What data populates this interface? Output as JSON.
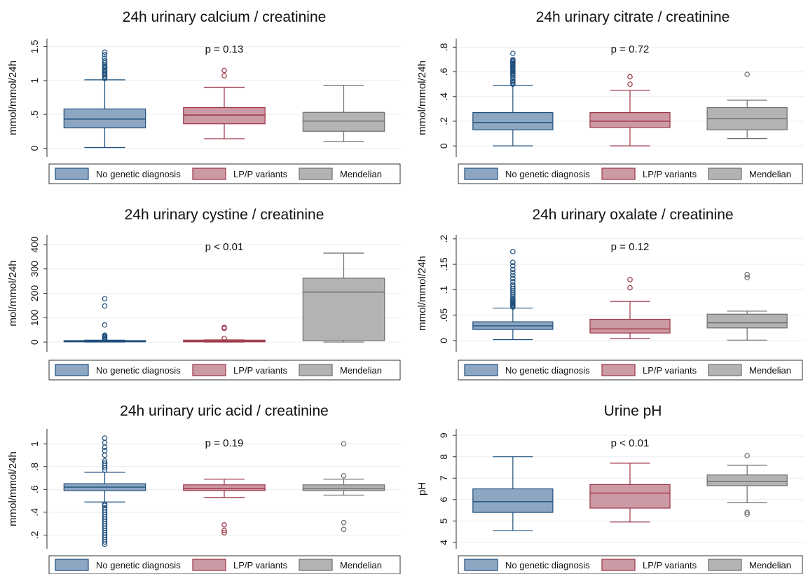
{
  "legend": [
    {
      "label": "No genetic diagnosis",
      "fill": "#8da6c2",
      "stroke": "#1e4f7c"
    },
    {
      "label": "LP/P variants",
      "fill": "#cc9aa4",
      "stroke": "#9c3344"
    },
    {
      "label": "Mendelian",
      "fill": "#b3b3b3",
      "stroke": "#6e6e6e"
    }
  ],
  "chart_data": [
    {
      "type": "box",
      "title": "24h urinary calcium / creatinine",
      "ylabel": "mmol/mmol/24h",
      "pvalue": "p = 0.13",
      "ylim": [
        -0.13,
        1.62
      ],
      "yticks": [
        0,
        0.5,
        1,
        1.5
      ],
      "yticklabels": [
        "0",
        ".5",
        "1",
        "1.5"
      ],
      "groups": [
        {
          "name": "No genetic diagnosis",
          "whisker_low": 0.01,
          "q1": 0.3,
          "median": 0.43,
          "q3": 0.58,
          "whisker_high": 1.01,
          "outliers": [
            1.03,
            1.05,
            1.07,
            1.09,
            1.11,
            1.13,
            1.15,
            1.17,
            1.19,
            1.21,
            1.23,
            1.26,
            1.29,
            1.33,
            1.38,
            1.42
          ]
        },
        {
          "name": "LP/P variants",
          "whisker_low": 0.14,
          "q1": 0.36,
          "median": 0.49,
          "q3": 0.6,
          "whisker_high": 0.9,
          "outliers": [
            1.07,
            1.15
          ]
        },
        {
          "name": "Mendelian",
          "whisker_low": 0.1,
          "q1": 0.25,
          "median": 0.4,
          "q3": 0.53,
          "whisker_high": 0.93,
          "outliers": []
        }
      ]
    },
    {
      "type": "box",
      "title": "24h urinary citrate / creatinine",
      "ylabel": "mmol/mmol/24h",
      "pvalue": "p = 0.72",
      "ylim": [
        -0.09,
        0.87
      ],
      "yticks": [
        0,
        0.2,
        0.4,
        0.6,
        0.8
      ],
      "yticklabels": [
        "0",
        ".2",
        ".4",
        ".6",
        ".8"
      ],
      "groups": [
        {
          "name": "No genetic diagnosis",
          "whisker_low": 0.0,
          "q1": 0.13,
          "median": 0.19,
          "q3": 0.27,
          "whisker_high": 0.49,
          "outliers": [
            0.5,
            0.51,
            0.52,
            0.53,
            0.55,
            0.57,
            0.58,
            0.59,
            0.6,
            0.61,
            0.62,
            0.63,
            0.64,
            0.65,
            0.66,
            0.67,
            0.68,
            0.69,
            0.7,
            0.75
          ]
        },
        {
          "name": "LP/P variants",
          "whisker_low": 0.0,
          "q1": 0.15,
          "median": 0.2,
          "q3": 0.27,
          "whisker_high": 0.45,
          "outliers": [
            0.5,
            0.56
          ]
        },
        {
          "name": "Mendelian",
          "whisker_low": 0.06,
          "q1": 0.13,
          "median": 0.22,
          "q3": 0.31,
          "whisker_high": 0.37,
          "outliers": [
            0.58
          ]
        }
      ]
    },
    {
      "type": "box",
      "title": "24h urinary cystine / creatinine",
      "ylabel": "mol/mmol/24h",
      "pvalue": "p < 0.01",
      "ylim": [
        -40,
        440
      ],
      "yticks": [
        0,
        100,
        200,
        300,
        400
      ],
      "yticklabels": [
        "0",
        "100",
        "200",
        "300",
        "400"
      ],
      "groups": [
        {
          "name": "No genetic diagnosis",
          "whisker_low": 0,
          "q1": 1,
          "median": 3,
          "q3": 6,
          "whisker_high": 8,
          "outliers": [
            12,
            16,
            20,
            24,
            28,
            70,
            148,
            178
          ]
        },
        {
          "name": "LP/P variants",
          "whisker_low": 0,
          "q1": 1,
          "median": 3,
          "q3": 8,
          "whisker_high": 9,
          "outliers": [
            15,
            56,
            60
          ]
        },
        {
          "name": "Mendelian",
          "whisker_low": 0,
          "q1": 6,
          "median": 205,
          "q3": 262,
          "whisker_high": 365,
          "outliers": []
        }
      ]
    },
    {
      "type": "box",
      "title": "24h urinary oxalate / creatinine",
      "ylabel": "mmol/mmol/24h",
      "pvalue": "p = 0.12",
      "ylim": [
        -0.022,
        0.208
      ],
      "yticks": [
        0,
        0.05,
        0.1,
        0.15,
        0.2
      ],
      "yticklabels": [
        "0",
        ".05",
        ".1",
        ".15",
        ".2"
      ],
      "groups": [
        {
          "name": "No genetic diagnosis",
          "whisker_low": 0.002,
          "q1": 0.022,
          "median": 0.029,
          "q3": 0.037,
          "whisker_high": 0.064,
          "outliers": [
            0.066,
            0.068,
            0.07,
            0.072,
            0.074,
            0.076,
            0.078,
            0.08,
            0.083,
            0.086,
            0.09,
            0.094,
            0.098,
            0.102,
            0.106,
            0.11,
            0.116,
            0.122,
            0.128,
            0.134,
            0.14,
            0.147,
            0.154,
            0.175
          ]
        },
        {
          "name": "LP/P variants",
          "whisker_low": 0.004,
          "q1": 0.015,
          "median": 0.023,
          "q3": 0.042,
          "whisker_high": 0.077,
          "outliers": [
            0.104,
            0.12
          ]
        },
        {
          "name": "Mendelian",
          "whisker_low": 0.001,
          "q1": 0.025,
          "median": 0.035,
          "q3": 0.052,
          "whisker_high": 0.058,
          "outliers": [
            0.124,
            0.13
          ]
        }
      ]
    },
    {
      "type": "box",
      "title": "24h urinary uric acid / creatinine",
      "ylabel": "mmol/mmol/24h",
      "pvalue": "p = 0.19",
      "ylim": [
        0.08,
        1.13
      ],
      "yticks": [
        0.2,
        0.4,
        0.6,
        0.8,
        1
      ],
      "yticklabels": [
        ".2",
        ".4",
        ".6",
        ".8",
        "1"
      ],
      "groups": [
        {
          "name": "No genetic diagnosis",
          "whisker_low": 0.49,
          "q1": 0.59,
          "median": 0.62,
          "q3": 0.65,
          "whisker_high": 0.75,
          "outliers": [
            0.12,
            0.14,
            0.16,
            0.18,
            0.2,
            0.22,
            0.24,
            0.26,
            0.28,
            0.3,
            0.32,
            0.34,
            0.36,
            0.38,
            0.4,
            0.42,
            0.44,
            0.46,
            0.47,
            0.77,
            0.79,
            0.81,
            0.83,
            0.85,
            0.9,
            0.94,
            0.97,
            1.01,
            1.05
          ]
        },
        {
          "name": "LP/P variants",
          "whisker_low": 0.53,
          "q1": 0.59,
          "median": 0.61,
          "q3": 0.64,
          "whisker_high": 0.69,
          "outliers": [
            0.22,
            0.24,
            0.29
          ]
        },
        {
          "name": "Mendelian",
          "whisker_low": 0.55,
          "q1": 0.59,
          "median": 0.61,
          "q3": 0.64,
          "whisker_high": 0.69,
          "outliers": [
            0.25,
            0.31,
            0.72,
            1.0
          ]
        }
      ]
    },
    {
      "type": "box",
      "title": "Urine pH",
      "ylabel": "pH",
      "pvalue": "p < 0.01",
      "ylim": [
        3.7,
        9.3
      ],
      "yticks": [
        4,
        5,
        6,
        7,
        8,
        9
      ],
      "yticklabels": [
        "4",
        "5",
        "6",
        "7",
        "8",
        "9"
      ],
      "groups": [
        {
          "name": "No genetic diagnosis",
          "whisker_low": 4.55,
          "q1": 5.4,
          "median": 5.9,
          "q3": 6.5,
          "whisker_high": 8.0,
          "outliers": []
        },
        {
          "name": "LP/P variants",
          "whisker_low": 4.95,
          "q1": 5.6,
          "median": 6.3,
          "q3": 6.7,
          "whisker_high": 7.7,
          "outliers": []
        },
        {
          "name": "Mendelian",
          "whisker_low": 5.85,
          "q1": 6.65,
          "median": 6.85,
          "q3": 7.15,
          "whisker_high": 7.6,
          "outliers": [
            5.32,
            5.4,
            8.05
          ]
        }
      ]
    }
  ]
}
